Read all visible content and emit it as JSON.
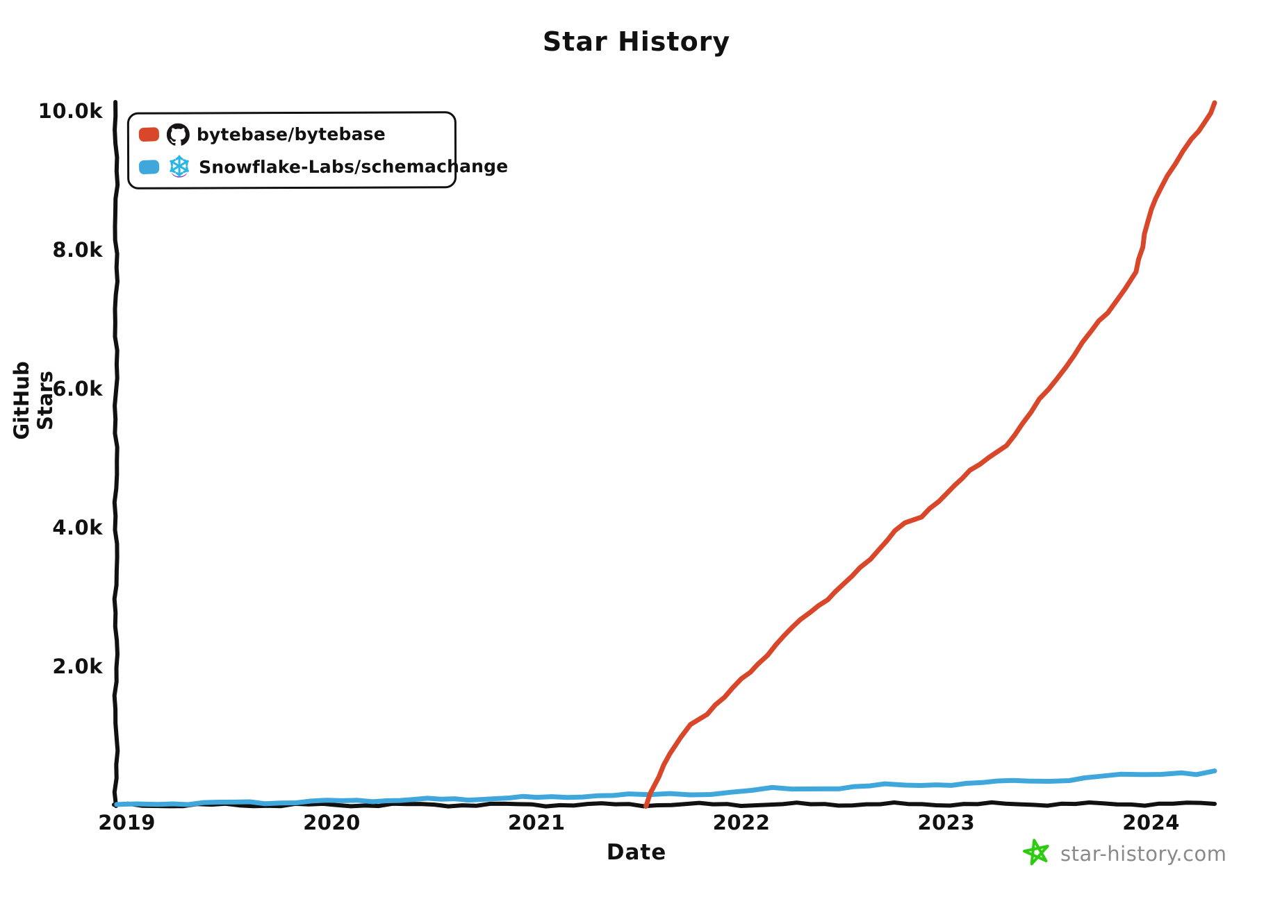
{
  "title": "Star History",
  "axes": {
    "x_label": "Date",
    "y_label": "GitHub Stars"
  },
  "legend": {
    "items": [
      {
        "label": "bytebase/bytebase",
        "swatch_color": "#D9472B",
        "icon": "github-icon"
      },
      {
        "label": "Snowflake-Labs/schemachange",
        "swatch_color": "#3FA7DC",
        "icon": "snowflake-icon"
      }
    ]
  },
  "footer": {
    "brand_text": "star-history.com",
    "brand_text_color": "#8a8a8a",
    "star_icon_color": "#2ECC11"
  },
  "icons": {
    "github_black": "#171515",
    "snowflake_blue": "#29B5E8",
    "snowflake_purple": "#7D3FC8"
  },
  "colors": {
    "axis": "#111111",
    "background": "#ffffff"
  },
  "chart_data": {
    "type": "line",
    "title": "Star History",
    "xlabel": "Date",
    "ylabel": "GitHub Stars",
    "style": "xkcd-hand-drawn",
    "grid": false,
    "legend_position": "top-left",
    "xlim": [
      2018.947,
      2024.31
    ],
    "ylim": [
      0,
      10140
    ],
    "x_ticks": [
      {
        "value": 2019,
        "label": "2019"
      },
      {
        "value": 2020,
        "label": "2020"
      },
      {
        "value": 2021,
        "label": "2021"
      },
      {
        "value": 2022,
        "label": "2022"
      },
      {
        "value": 2023,
        "label": "2023"
      },
      {
        "value": 2024,
        "label": "2024"
      }
    ],
    "y_ticks": [
      {
        "value": 2000,
        "label": "2.0k"
      },
      {
        "value": 4000,
        "label": "4.0k"
      },
      {
        "value": 6000,
        "label": "6.0k"
      },
      {
        "value": 8000,
        "label": "8.0k"
      },
      {
        "value": 10000,
        "label": "10.0k"
      }
    ],
    "series": [
      {
        "name": "bytebase/bytebase",
        "color": "#D9472B",
        "points": [
          [
            2021.53,
            0
          ],
          [
            2021.56,
            180
          ],
          [
            2021.6,
            420
          ],
          [
            2021.65,
            750
          ],
          [
            2021.7,
            1000
          ],
          [
            2021.75,
            1180
          ],
          [
            2021.83,
            1330
          ],
          [
            2021.92,
            1560
          ],
          [
            2022.0,
            1830
          ],
          [
            2022.08,
            2050
          ],
          [
            2022.17,
            2310
          ],
          [
            2022.25,
            2570
          ],
          [
            2022.33,
            2800
          ],
          [
            2022.42,
            2980
          ],
          [
            2022.5,
            3180
          ],
          [
            2022.58,
            3430
          ],
          [
            2022.67,
            3700
          ],
          [
            2022.75,
            3960
          ],
          [
            2022.8,
            4060
          ],
          [
            2022.88,
            4160
          ],
          [
            2022.96,
            4400
          ],
          [
            2023.04,
            4620
          ],
          [
            2023.12,
            4820
          ],
          [
            2023.21,
            5020
          ],
          [
            2023.29,
            5200
          ],
          [
            2023.37,
            5500
          ],
          [
            2023.46,
            5850
          ],
          [
            2023.54,
            6150
          ],
          [
            2023.62,
            6500
          ],
          [
            2023.71,
            6850
          ],
          [
            2023.79,
            7100
          ],
          [
            2023.87,
            7450
          ],
          [
            2023.92,
            7700
          ],
          [
            2023.96,
            8050
          ],
          [
            2024.0,
            8600
          ],
          [
            2024.04,
            8900
          ],
          [
            2024.12,
            9250
          ],
          [
            2024.2,
            9600
          ],
          [
            2024.26,
            9850
          ],
          [
            2024.31,
            10130
          ]
        ]
      },
      {
        "name": "Snowflake-Labs/schemachange",
        "color": "#3FA7DC",
        "points": [
          [
            2018.95,
            10
          ],
          [
            2019.05,
            28
          ],
          [
            2019.15,
            40
          ],
          [
            2019.3,
            32
          ],
          [
            2019.45,
            42
          ],
          [
            2019.6,
            55
          ],
          [
            2019.75,
            48
          ],
          [
            2019.9,
            62
          ],
          [
            2020.05,
            72
          ],
          [
            2020.2,
            80
          ],
          [
            2020.4,
            88
          ],
          [
            2020.6,
            98
          ],
          [
            2020.8,
            108
          ],
          [
            2021.0,
            122
          ],
          [
            2021.15,
            138
          ],
          [
            2021.3,
            148
          ],
          [
            2021.45,
            152
          ],
          [
            2021.55,
            160
          ],
          [
            2021.65,
            178
          ],
          [
            2021.75,
            172
          ],
          [
            2021.85,
            182
          ],
          [
            2021.95,
            195
          ],
          [
            2022.05,
            225
          ],
          [
            2022.15,
            245
          ],
          [
            2022.25,
            238
          ],
          [
            2022.4,
            255
          ],
          [
            2022.55,
            275
          ],
          [
            2022.7,
            300
          ],
          [
            2022.8,
            292
          ],
          [
            2022.95,
            310
          ],
          [
            2023.1,
            322
          ],
          [
            2023.25,
            345
          ],
          [
            2023.4,
            368
          ],
          [
            2023.5,
            360
          ],
          [
            2023.6,
            385
          ],
          [
            2023.75,
            420
          ],
          [
            2023.85,
            445
          ],
          [
            2023.95,
            438
          ],
          [
            2024.05,
            465
          ],
          [
            2024.15,
            482
          ],
          [
            2024.22,
            470
          ],
          [
            2024.31,
            505
          ]
        ]
      }
    ]
  }
}
